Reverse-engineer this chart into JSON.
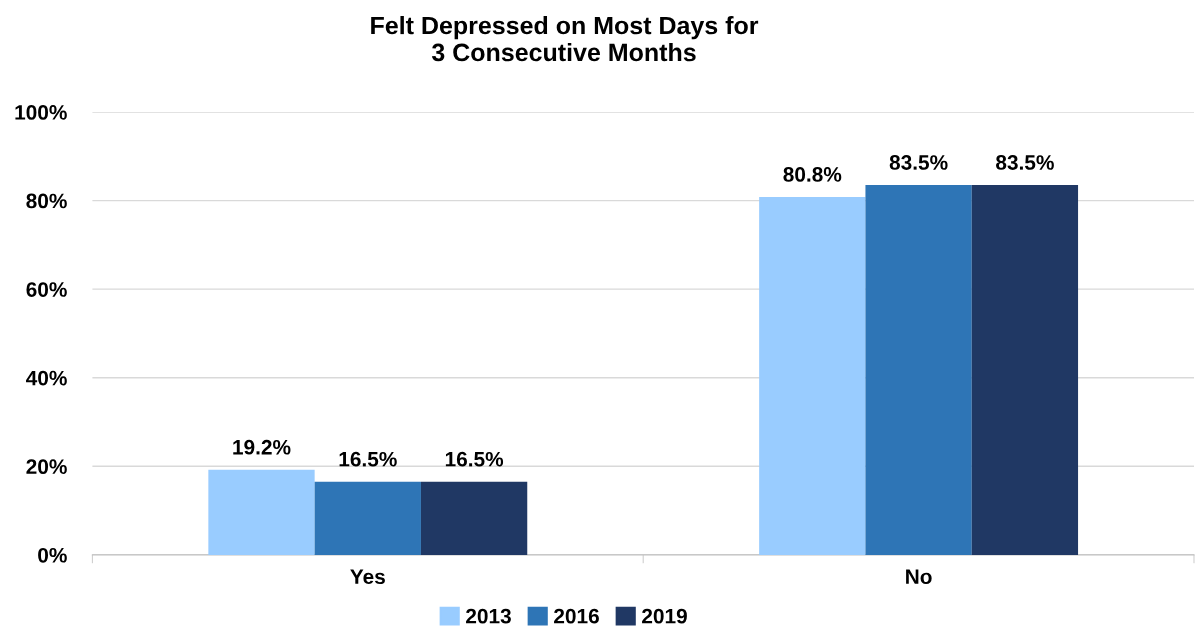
{
  "chart_data": {
    "type": "bar",
    "title": "Felt Depressed on Most Days for\n3 Consecutive Months",
    "categories": [
      "Yes",
      "No"
    ],
    "series": [
      {
        "name": "2013",
        "color": "#99ccff",
        "values": [
          19.2,
          80.8
        ]
      },
      {
        "name": "2016",
        "color": "#2e75b6",
        "values": [
          16.5,
          83.5
        ]
      },
      {
        "name": "2019",
        "color": "#203864",
        "values": [
          16.5,
          83.5
        ]
      }
    ],
    "value_labels": [
      [
        "19.2%",
        "80.8%"
      ],
      [
        "16.5%",
        "83.5%"
      ],
      [
        "16.5%",
        "83.5%"
      ]
    ],
    "ylim": [
      0,
      100
    ],
    "yticks": [
      {
        "value": 0,
        "label": "0%"
      },
      {
        "value": 20,
        "label": "20%"
      },
      {
        "value": 40,
        "label": "40%"
      },
      {
        "value": 60,
        "label": "60%"
      },
      {
        "value": 80,
        "label": "80%"
      },
      {
        "value": 100,
        "label": "100%"
      }
    ],
    "grid": "y",
    "legend": "bottom"
  }
}
